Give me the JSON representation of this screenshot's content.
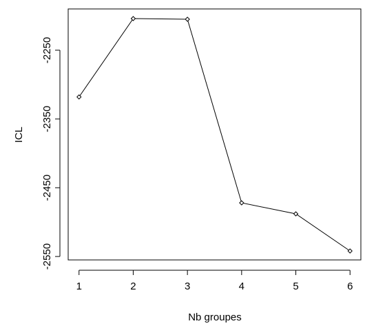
{
  "chart_data": {
    "type": "line",
    "title": "",
    "xlabel": "Nb groupes",
    "ylabel": "ICL",
    "x": [
      1,
      2,
      3,
      4,
      5,
      6
    ],
    "series": [
      {
        "values": [
          -2318,
          -2204,
          -2205,
          -2472,
          -2488,
          -2542
        ]
      }
    ],
    "xticks": [
      "1",
      "2",
      "3",
      "4",
      "5",
      "6"
    ],
    "yticks": [
      -2550,
      -2450,
      -2350,
      -2250
    ],
    "ytick_labels": [
      "-2550",
      "-2450",
      "-2350",
      "-2250"
    ],
    "xlim": [
      0.8,
      6.2
    ],
    "ylim": [
      -2555,
      -2190
    ],
    "marker": "diamond",
    "line_color": "#000000",
    "grid": false,
    "legend": "none"
  }
}
